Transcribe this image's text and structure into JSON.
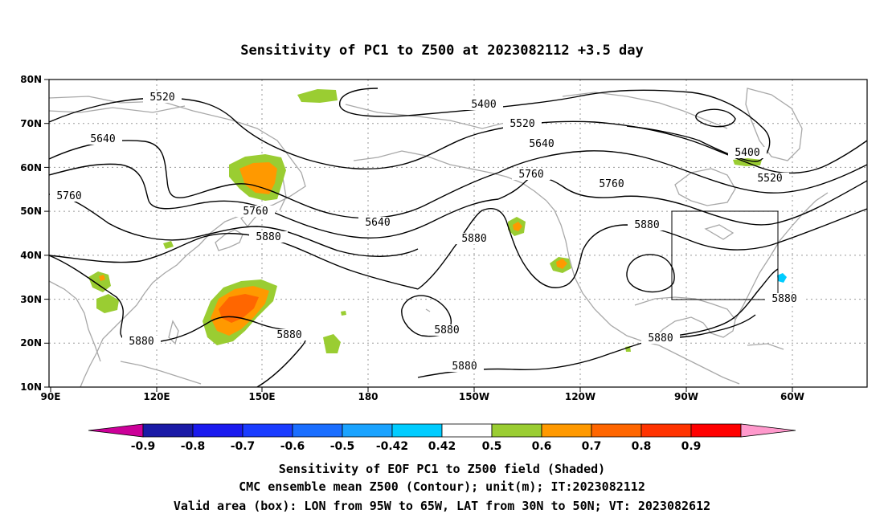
{
  "title": "Sensitivity of PC1 to Z500 at 2023082112 +3.5 day",
  "map": {
    "lat_labels": [
      "80N",
      "70N",
      "60N",
      "50N",
      "40N",
      "30N",
      "20N",
      "10N"
    ],
    "lon_labels": [
      "90E",
      "120E",
      "150E",
      "180",
      "150W",
      "120W",
      "90W",
      "60W"
    ],
    "extent": {
      "lon_west": "90E",
      "lon_east": "40W",
      "lat_south": "10N",
      "lat_north": "80N"
    },
    "grid": true,
    "valid_box": {
      "lon_from": "95W",
      "lon_to": "65W",
      "lat_from": "30N",
      "lat_to": "50N"
    },
    "contour_labels": [
      "5520",
      "5400",
      "5520",
      "5640",
      "5400",
      "5520",
      "5640",
      "5760",
      "5760",
      "5760",
      "5640",
      "5880",
      "5880",
      "5880",
      "5880",
      "5880",
      "5880",
      "5880",
      "5880",
      "5760",
      "5880"
    ],
    "contour_unit": "m",
    "shading_colors": {
      "0.42-0.5": "#9acd32",
      "0.5-0.6": "#ff9900",
      "0.6-0.7": "#ff6600",
      "-0.5--0.42": "#00ccff"
    }
  },
  "colorbar": {
    "labels": [
      "-0.9",
      "-0.8",
      "-0.7",
      "-0.6",
      "-0.5",
      "-0.42",
      "0.42",
      "0.5",
      "0.6",
      "0.7",
      "0.8",
      "0.9"
    ],
    "colors": [
      "#cc0099",
      "#1a1aa6",
      "#1a1aee",
      "#1a3cff",
      "#1a6eff",
      "#1aa3ff",
      "#00ccff",
      "#ffffff",
      "#9acd32",
      "#ff9900",
      "#ff6600",
      "#ff3300",
      "#ff0000",
      "#ff99cc"
    ]
  },
  "footer": {
    "line1": "Sensitivity of EOF PC1 to Z500 field (Shaded)",
    "line2": "CMC ensemble mean Z500 (Contour); unit(m); IT:2023082112",
    "line3": "Valid area (box): LON from 95W to 65W, LAT from 30N to 50N; VT: 2023082612"
  }
}
